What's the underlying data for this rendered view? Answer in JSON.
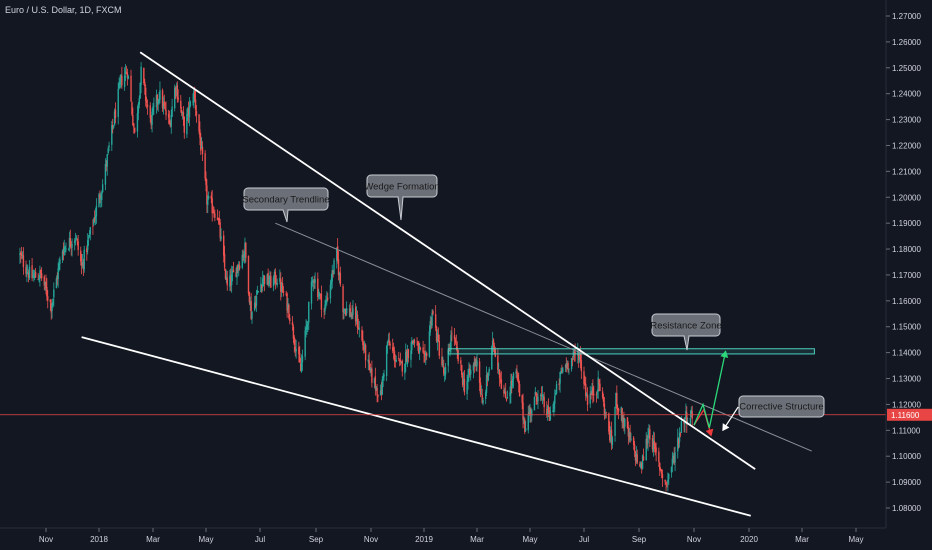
{
  "header": {
    "symbol_title": "Euro / U.S. Dollar, 1D, FXCM"
  },
  "colors": {
    "background": "#131722",
    "bull": "#26a69a",
    "bear": "#ef5350",
    "trendline": "#ffffff",
    "secondary_trendline": "#8a8f98",
    "resistance": "#4dd0c0",
    "price_line": "#e84545",
    "arrow_up": "#2bd97a",
    "arrow_down": "#ef3b3b",
    "callout_fill": "#6b6f78",
    "callout_border": "#c9ccd2"
  },
  "price_label": "1.11600",
  "chart_data": {
    "type": "candlestick",
    "title": "Euro / U.S. Dollar, 1D, FXCM",
    "x_ticks": [
      "Nov",
      "2018",
      "Mar",
      "May",
      "Jul",
      "Sep",
      "Nov",
      "2019",
      "Mar",
      "May",
      "Jul",
      "Sep",
      "Nov",
      "2020",
      "Mar",
      "May"
    ],
    "y_ticks": [
      "1.27000",
      "1.26000",
      "1.25000",
      "1.24000",
      "1.23000",
      "1.22000",
      "1.21000",
      "1.20000",
      "1.19000",
      "1.18000",
      "1.17000",
      "1.16000",
      "1.15000",
      "1.14000",
      "1.13000",
      "1.12000",
      "1.11000",
      "1.10000",
      "1.09000",
      "1.08000"
    ],
    "y_range": [
      1.0755,
      1.2765
    ],
    "last_price": 1.116,
    "price_path": [
      [
        "2017-10-01",
        1.178
      ],
      [
        "2017-10-15",
        1.169
      ],
      [
        "2017-10-26",
        1.17
      ],
      [
        "2017-11-07",
        1.158
      ],
      [
        "2017-11-20",
        1.18
      ],
      [
        "2017-12-05",
        1.185
      ],
      [
        "2017-12-12",
        1.173
      ],
      [
        "2017-12-22",
        1.186
      ],
      [
        "2018-01-05",
        1.205
      ],
      [
        "2018-01-15",
        1.225
      ],
      [
        "2018-01-25",
        1.245
      ],
      [
        "2018-02-01",
        1.249
      ],
      [
        "2018-02-09",
        1.224
      ],
      [
        "2018-02-16",
        1.248
      ],
      [
        "2018-02-26",
        1.229
      ],
      [
        "2018-03-08",
        1.24
      ],
      [
        "2018-03-20",
        1.228
      ],
      [
        "2018-03-27",
        1.244
      ],
      [
        "2018-04-06",
        1.227
      ],
      [
        "2018-04-17",
        1.24
      ],
      [
        "2018-04-24",
        1.223
      ],
      [
        "2018-05-02",
        1.199
      ],
      [
        "2018-05-14",
        1.193
      ],
      [
        "2018-05-25",
        1.165
      ],
      [
        "2018-06-01",
        1.17
      ],
      [
        "2018-06-14",
        1.18
      ],
      [
        "2018-06-21",
        1.155
      ],
      [
        "2018-07-04",
        1.169
      ],
      [
        "2018-07-12",
        1.167
      ],
      [
        "2018-07-20",
        1.169
      ],
      [
        "2018-08-01",
        1.158
      ],
      [
        "2018-08-15",
        1.133
      ],
      [
        "2018-08-29",
        1.17
      ],
      [
        "2018-09-10",
        1.156
      ],
      [
        "2018-09-24",
        1.178
      ],
      [
        "2018-10-01",
        1.158
      ],
      [
        "2018-10-16",
        1.153
      ],
      [
        "2018-10-31",
        1.132
      ],
      [
        "2018-11-12",
        1.123
      ],
      [
        "2018-11-20",
        1.144
      ],
      [
        "2018-12-05",
        1.134
      ],
      [
        "2018-12-20",
        1.145
      ],
      [
        "2019-01-02",
        1.136
      ],
      [
        "2019-01-10",
        1.156
      ],
      [
        "2019-01-24",
        1.13
      ],
      [
        "2019-02-01",
        1.148
      ],
      [
        "2019-02-15",
        1.127
      ],
      [
        "2019-03-01",
        1.138
      ],
      [
        "2019-03-07",
        1.119
      ],
      [
        "2019-03-20",
        1.144
      ],
      [
        "2019-04-02",
        1.122
      ],
      [
        "2019-04-15",
        1.132
      ],
      [
        "2019-04-25",
        1.112
      ],
      [
        "2019-05-10",
        1.125
      ],
      [
        "2019-05-23",
        1.115
      ],
      [
        "2019-06-07",
        1.134
      ],
      [
        "2019-06-25",
        1.14
      ],
      [
        "2019-07-05",
        1.122
      ],
      [
        "2019-07-18",
        1.128
      ],
      [
        "2019-08-01",
        1.105
      ],
      [
        "2019-08-06",
        1.122
      ],
      [
        "2019-08-20",
        1.108
      ],
      [
        "2019-09-03",
        1.095
      ],
      [
        "2019-09-12",
        1.11
      ],
      [
        "2019-09-20",
        1.1
      ],
      [
        "2019-10-01",
        1.089
      ],
      [
        "2019-10-10",
        1.1
      ],
      [
        "2019-10-20",
        1.115
      ],
      [
        "2019-10-30",
        1.116
      ]
    ],
    "drawings": {
      "trendlines": [
        {
          "from": [
            "2018-02-15",
            1.256
          ],
          "to": [
            "2020-01-08",
            1.095
          ]
        },
        {
          "from": [
            "2017-12-12",
            1.146
          ],
          "to": [
            "2020-01-03",
            1.077
          ]
        }
      ],
      "secondary_trendline": {
        "from": [
          "2018-07-18",
          1.19
        ],
        "to": [
          "2020-03-12",
          1.102
        ]
      },
      "resistance_zone": {
        "from": "2019-01-28",
        "to": "2020-03-15",
        "top": 1.1415,
        "bottom": 1.1395
      },
      "projection_down": [
        [
          "2019-11-01",
          1.112
        ],
        [
          "2019-11-12",
          1.118
        ],
        [
          "2019-11-20",
          1.108
        ]
      ],
      "projection_up": [
        [
          "2019-11-01",
          1.112
        ],
        [
          "2019-11-11",
          1.12
        ],
        [
          "2019-11-18",
          1.111
        ],
        [
          "2019-12-06",
          1.1405
        ]
      ],
      "pointer_arrow": {
        "from": [
          "2019-12-20",
          1.119
        ],
        "to": [
          "2019-12-03",
          1.11
        ]
      }
    },
    "annotations": [
      "Wedge Formation",
      "Secondary Trendline",
      "Resistance Zone",
      "Corrective Structure"
    ]
  },
  "annotations": {
    "wedge": "Wedge Formation",
    "secondary": "Secondary Trendline",
    "resistance": "Resistance Zone",
    "corrective": "Corrective Structure"
  }
}
